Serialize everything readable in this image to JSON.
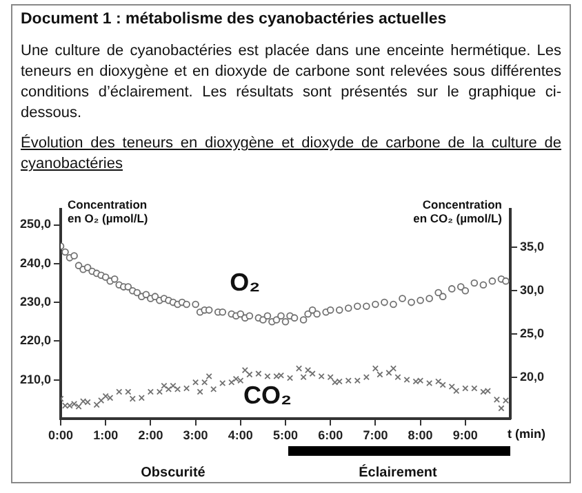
{
  "chart_data": {
    "type": "scatter",
    "title": "Document 1 : métabolisme des cyanobactéries actuelles",
    "subtitle": "Évolution des teneurs en dioxygène et dioxyde de carbone de la culture de cyanobactéries",
    "annotations": [
      "Une culture de cyanobactéries est placée dans une enceinte hermétique. Les teneurs en dioxygène et en dioxyde de carbone sont relevées sous différentes conditions d’éclairement. Les résultats sont présentés sur le graphique ci-dessous.",
      "Obscurité",
      "Éclairement"
    ],
    "xlabel": "t (min)",
    "ylabel": "Concentration en O₂ (µmol/L)",
    "y2label": "Concentration en CO₂ (µmol/L)",
    "xlim": [
      0,
      10
    ],
    "xticks": [
      {
        "value": 0,
        "label": "0:00"
      },
      {
        "value": 1,
        "label": "1:00"
      },
      {
        "value": 2,
        "label": "2:00"
      },
      {
        "value": 3,
        "label": "3:00"
      },
      {
        "value": 4,
        "label": "4:00"
      },
      {
        "value": 5,
        "label": "5:00"
      },
      {
        "value": 6,
        "label": "6:00"
      },
      {
        "value": 7,
        "label": "7:00"
      },
      {
        "value": 8,
        "label": "8:00"
      },
      {
        "value": 9,
        "label": "9:00"
      }
    ],
    "ylim": [
      200,
      254
    ],
    "yticks": [
      {
        "value": 210,
        "label": "210,0"
      },
      {
        "value": 220,
        "label": "220,0"
      },
      {
        "value": 230,
        "label": "230,0"
      },
      {
        "value": 240,
        "label": "240,0"
      },
      {
        "value": 250,
        "label": "250,0"
      }
    ],
    "y2lim": [
      15.2,
      39.4
    ],
    "y2ticks": [
      {
        "value": 20,
        "label": "20,0"
      },
      {
        "value": 25,
        "label": "25,0"
      },
      {
        "value": 30,
        "label": "30,0"
      },
      {
        "value": 35,
        "label": "35,0"
      }
    ],
    "grid": false,
    "legend": false,
    "series": [
      {
        "name": "O₂",
        "color": "#707070",
        "marker": "circle",
        "x": [
          0,
          0.1,
          0.2,
          0.3,
          0.4,
          0.5,
          0.6,
          0.7,
          0.8,
          0.9,
          1.0,
          1.1,
          1.2,
          1.3,
          1.4,
          1.5,
          1.6,
          1.7,
          1.8,
          1.9,
          2.0,
          2.1,
          2.2,
          2.3,
          2.4,
          2.5,
          2.6,
          2.7,
          2.8,
          3.0,
          3.1,
          3.2,
          3.3,
          3.5,
          3.6,
          3.8,
          3.9,
          4.0,
          4.1,
          4.2,
          4.4,
          4.5,
          4.6,
          4.7,
          4.8,
          4.9,
          5.0,
          5.1,
          5.2,
          5.4,
          5.5,
          5.6,
          5.7,
          5.9,
          6.0,
          6.2,
          6.4,
          6.6,
          6.8,
          7.0,
          7.2,
          7.4,
          7.6,
          7.8,
          8.0,
          8.2,
          8.4,
          8.5,
          8.7,
          8.9,
          9.0,
          9.2,
          9.4,
          9.6,
          9.8,
          9.9
        ],
        "values": [
          244.5,
          243,
          241.5,
          242,
          239.5,
          238.5,
          239,
          238,
          237.5,
          237,
          236.5,
          235.5,
          236,
          234.5,
          234,
          234,
          233,
          232.5,
          231.5,
          232,
          231,
          231.5,
          230.5,
          231,
          230.5,
          230,
          229.5,
          230,
          229.5,
          229.5,
          227.5,
          228,
          228,
          227.5,
          227.5,
          227,
          226.5,
          227,
          226,
          226.5,
          226,
          225.5,
          226.5,
          225,
          225.5,
          226.5,
          225,
          226.5,
          226,
          225.5,
          227,
          228,
          227,
          227.5,
          228,
          228,
          228.5,
          229,
          229,
          229.5,
          230,
          229.5,
          231,
          230,
          230.5,
          231,
          232.5,
          231.5,
          233.5,
          234,
          233,
          235,
          234.5,
          235.5,
          236,
          235.5
        ]
      },
      {
        "name": "CO₂",
        "color": "#707070",
        "marker": "cross",
        "axis": "y2",
        "x": [
          0,
          0.1,
          0.2,
          0.3,
          0.4,
          0.5,
          0.6,
          0.8,
          0.9,
          1.0,
          1.1,
          1.3,
          1.5,
          1.6,
          1.8,
          2.0,
          2.2,
          2.3,
          2.4,
          2.5,
          2.6,
          2.8,
          3.0,
          3.1,
          3.2,
          3.3,
          3.4,
          3.6,
          3.8,
          3.9,
          4.0,
          4.1,
          4.2,
          4.4,
          4.6,
          4.8,
          4.9,
          5.1,
          5.3,
          5.4,
          5.5,
          5.6,
          5.8,
          6.0,
          6.1,
          6.2,
          6.4,
          6.6,
          6.8,
          7.0,
          7.1,
          7.3,
          7.4,
          7.5,
          7.7,
          7.9,
          8.0,
          8.2,
          8.4,
          8.5,
          8.7,
          8.8,
          9.0,
          9.2,
          9.4,
          9.5,
          9.7,
          9.8,
          9.9
        ],
        "values": [
          17.5,
          16.7,
          16.7,
          16.9,
          16.6,
          17.2,
          17.1,
          16.8,
          17.3,
          17.8,
          17.6,
          18.3,
          18.3,
          17.5,
          17.6,
          18.3,
          18.3,
          19.0,
          18.6,
          19.0,
          18.6,
          18.7,
          19.4,
          18.3,
          19.4,
          20.1,
          18.6,
          19.3,
          19.4,
          19.8,
          19.6,
          20.8,
          20.3,
          20.4,
          20.1,
          20.1,
          20.2,
          19.9,
          21.0,
          20.0,
          20.8,
          20.4,
          20.1,
          20.0,
          19.4,
          19.5,
          19.6,
          19.6,
          20.0,
          21.0,
          20.3,
          20.5,
          21.0,
          20.0,
          19.7,
          19.5,
          19.6,
          19.3,
          19.5,
          19.1,
          18.9,
          18.4,
          18.7,
          18.7,
          18.3,
          18.4,
          17.4,
          16.4,
          17.3
        ]
      }
    ]
  }
}
